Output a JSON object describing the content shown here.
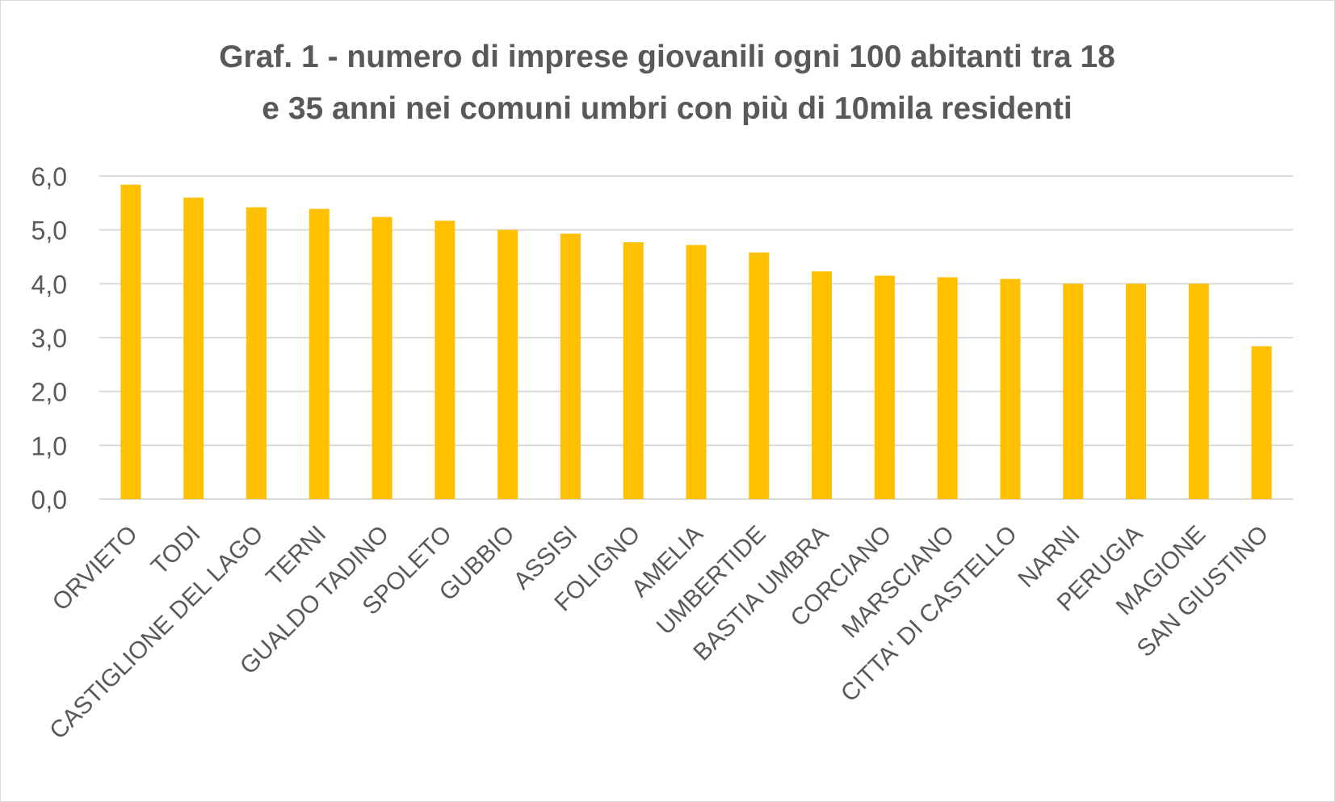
{
  "chart_data": {
    "type": "bar",
    "title_lines": [
      "Graf. 1 - numero di imprese giovanili ogni 100 abitanti tra 18",
      "e 35 anni nei comuni umbri con più di 10mila residenti"
    ],
    "xlabel": "",
    "ylabel": "",
    "categories": [
      "ORVIETO",
      "TODI",
      "CASTIGLIONE DEL LAGO",
      "TERNI",
      "GUALDO TADINO",
      "SPOLETO",
      "GUBBIO",
      "ASSISI",
      "FOLIGNO",
      "AMELIA",
      "UMBERTIDE",
      "BASTIA UMBRA",
      "CORCIANO",
      "MARSCIANO",
      "CITTA' DI CASTELLO",
      "NARNI",
      "PERUGIA",
      "MAGIONE",
      "SAN GIUSTINO"
    ],
    "values": [
      5.84,
      5.6,
      5.42,
      5.39,
      5.24,
      5.17,
      5.0,
      4.93,
      4.77,
      4.72,
      4.58,
      4.23,
      4.15,
      4.12,
      4.09,
      4.0,
      4.0,
      4.0,
      2.84
    ],
    "ylim": [
      0,
      6
    ],
    "yticks": [
      0,
      1,
      2,
      3,
      4,
      5,
      6
    ],
    "ytick_labels": [
      "0,0",
      "1,0",
      "2,0",
      "3,0",
      "4,0",
      "5,0",
      "6,0"
    ],
    "grid": true,
    "legend": "none",
    "colors": {
      "bar": "#FFC000",
      "grid": "#d9d9d9",
      "text": "#595959",
      "title": "#595959"
    }
  }
}
